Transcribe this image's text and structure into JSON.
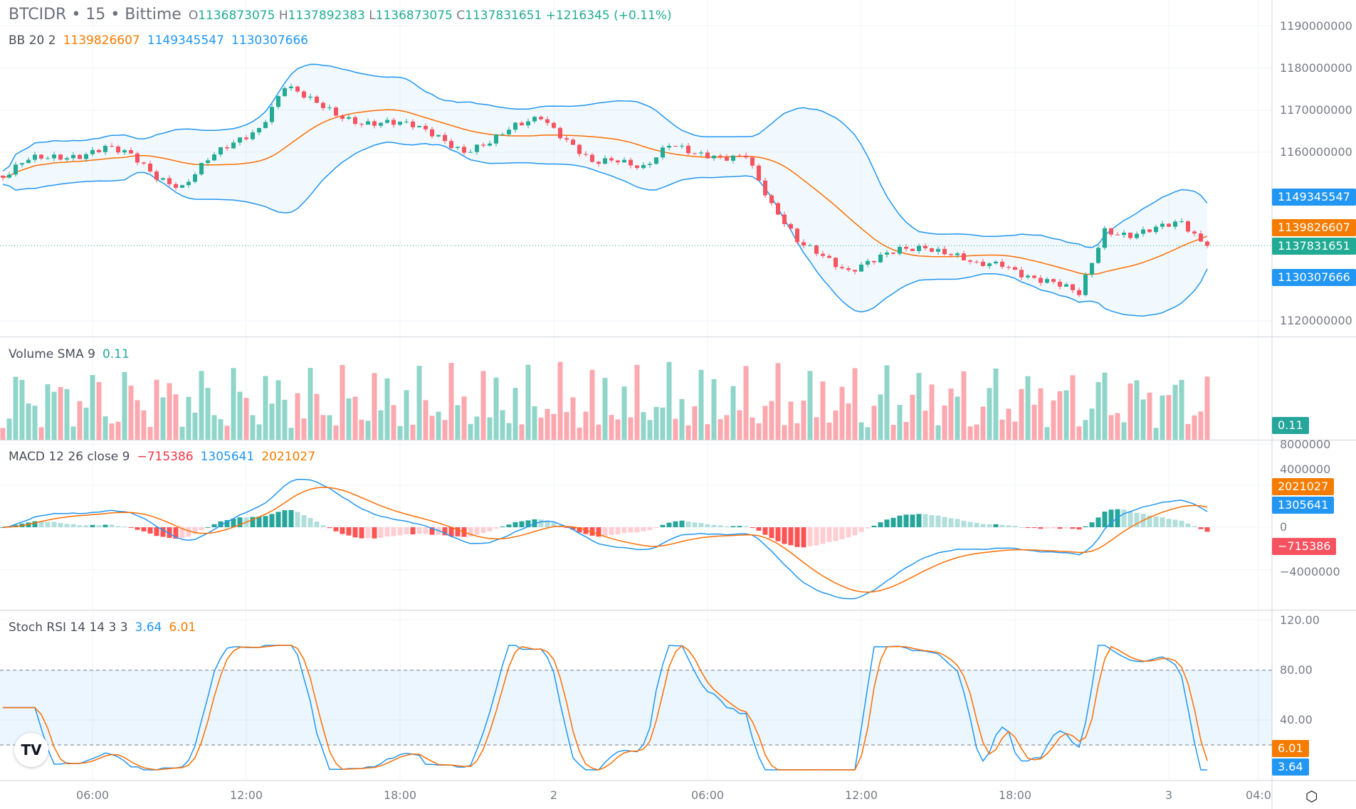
{
  "header": {
    "symbol": "BTCIDR",
    "interval": "15",
    "exchange": "Bittime",
    "sep": "•",
    "open_label": "O",
    "open": "1136873075",
    "high_label": "H",
    "high": "1137892383",
    "low_label": "L",
    "low": "1136873075",
    "close_label": "C",
    "close": "1137831651",
    "change": "+1216345 (+0.11%)"
  },
  "indicators": {
    "bb": {
      "label": "BB 20 2",
      "basis": "1139826607",
      "upper": "1149345547",
      "lower": "1130307666"
    },
    "volume": {
      "label": "Volume SMA 9",
      "value": "0.11"
    },
    "macd": {
      "label": "MACD 12 26 close 9",
      "hist": "−715386",
      "macd": "1305641",
      "signal": "2021027"
    },
    "stoch": {
      "label": "Stoch RSI 14 14 3 3",
      "k": "3.64",
      "d": "6.01"
    }
  },
  "colors": {
    "up": "#22ab94",
    "down": "#f7525f",
    "bb_band": "#2196f3",
    "bb_basis": "#ff6d00",
    "macd": "#2196f3",
    "signal": "#ff6d00",
    "stoch_k": "#2196f3",
    "stoch_d": "#ff6d00"
  },
  "chart_data": [
    {
      "type": "candlestick",
      "title": "BTCIDR · 15 · Bittime",
      "bar_interval": "15 minutes",
      "hourly_closes": [
        1154000000,
        1158000000,
        1159000000,
        1159600000,
        1161000000,
        1159000000,
        1154500000,
        1152000000,
        1158000000,
        1162000000,
        1166000000,
        1176000000,
        1172000000,
        1169000000,
        1167400000,
        1167000000,
        1166000000,
        1164000000,
        1160500000,
        1162000000,
        1166000000,
        1169000000,
        1163000000,
        1157000000,
        1158000000,
        1157000000,
        1162000000,
        1159000000,
        1158800000,
        1160000000,
        1147000000,
        1138500000,
        1136000000,
        1132000000,
        1134000000,
        1136800000,
        1138000000,
        1136000000,
        1132800000,
        1133500000,
        1131000000,
        1129000000,
        1126000000,
        1141700000,
        1140700000,
        1141700000,
        1143000000,
        1137831651
      ],
      "y_ticks": [
        "1190000000",
        "1180000000",
        "1170000000",
        "1160000000",
        "1120000000"
      ],
      "ylim": [
        1115000000,
        1191000000
      ],
      "last_price": "1137831651"
    },
    {
      "type": "bar",
      "title": "Volume SMA 9",
      "value_label": "0.11"
    },
    {
      "type": "line+bar",
      "title": "MACD 12 26 close 9",
      "y_ticks": [
        "8000000",
        "4000000",
        "0",
        "−4000000"
      ],
      "ylim": [
        -6000000,
        8500000
      ]
    },
    {
      "type": "line",
      "title": "Stoch RSI 14 14 3 3",
      "y_ticks": [
        "120.00",
        "80.00",
        "40.00"
      ],
      "ylim": [
        -5,
        125
      ],
      "bands": [
        20,
        80
      ]
    }
  ],
  "x_axis": {
    "ticks": [
      {
        "label": "06:00",
        "bar": 14
      },
      {
        "label": "12:00",
        "bar": 38
      },
      {
        "label": "18:00",
        "bar": 62
      },
      {
        "label": "2",
        "bar": 86
      },
      {
        "label": "06:00",
        "bar": 110
      },
      {
        "label": "12:00",
        "bar": 134
      },
      {
        "label": "18:00",
        "bar": 158
      },
      {
        "label": "3",
        "bar": 182
      },
      {
        "label": "04:0",
        "bar": 196
      }
    ]
  },
  "logo": "TV"
}
